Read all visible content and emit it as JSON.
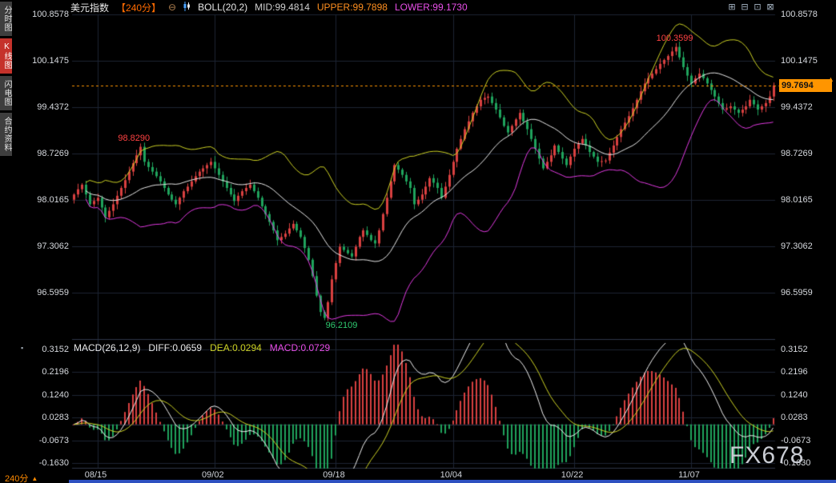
{
  "header": {
    "title": "美元指数",
    "timeframe": "【240分】",
    "zoom_icon": "⊖",
    "boll_label": "BOLL(20,2)",
    "mid": "MID:99.4814",
    "upper": "UPPER:99.7898",
    "lower": "LOWER:99.1730",
    "win_icons": [
      "⊞",
      "⊟",
      "⊡",
      "⊠"
    ]
  },
  "sidebar": {
    "items": [
      {
        "label": "分时图",
        "active": false
      },
      {
        "label": "K线图",
        "active": true
      },
      {
        "label": "闪电图",
        "active": false
      },
      {
        "label": "合约资料",
        "active": false
      }
    ]
  },
  "macd_header": {
    "icon": "▪",
    "label": "MACD(26,12,9)",
    "diff": "DIFF:0.0659",
    "dea": "DEA:0.0294",
    "macd": "MACD:0.0729"
  },
  "annotations": {
    "high": "100.3599",
    "early_high": "98.8290",
    "low": "96.2109"
  },
  "price_tag": {
    "value": "99.7694",
    "arrow": "▲"
  },
  "bottom": {
    "timeframe": "240分",
    "arrow": "▲"
  },
  "watermark": "FX678",
  "colors": {
    "up": "#d94040",
    "down": "#1fa35c",
    "boll_upper": "#cdd224",
    "boll_mid": "#e8e8e8",
    "boll_lower": "#e23ae2",
    "macd_diff": "#f0f0f0",
    "macd_dea": "#cdd224",
    "accent_orange": "#ff9500",
    "grid": "#1c2433",
    "separator": "#2e3648"
  },
  "chart_data": {
    "type": "candlestick",
    "title": "美元指数 【240分】",
    "price_ticks": [
      100.8578,
      100.1475,
      99.4372,
      98.7269,
      98.0165,
      97.3062,
      96.5959
    ],
    "macd_ticks": [
      0.3152,
      0.2196,
      0.124,
      0.0283,
      -0.0673,
      -0.163
    ],
    "x_labels": [
      {
        "label": "08/15",
        "index": 6
      },
      {
        "label": "09/02",
        "index": 36
      },
      {
        "label": "09/18",
        "index": 67
      },
      {
        "label": "10/04",
        "index": 97
      },
      {
        "label": "10/22",
        "index": 128
      },
      {
        "label": "11/07",
        "index": 158
      }
    ],
    "current_price": 99.7694,
    "indicators": {
      "boll": {
        "period": 20,
        "mult": 2
      },
      "macd": {
        "fast": 12,
        "slow": 26,
        "signal": 9
      }
    },
    "marked_points": {
      "early_high": {
        "index": 17,
        "value": 98.829
      },
      "low": {
        "index": 64,
        "value": 96.2109
      },
      "high": {
        "index": 154,
        "value": 100.3599
      }
    },
    "closes": [
      98.1,
      98.18,
      98.25,
      98.1,
      97.95,
      98.0,
      98.05,
      97.9,
      97.75,
      97.85,
      97.95,
      98.08,
      98.2,
      98.32,
      98.45,
      98.58,
      98.7,
      98.83,
      98.6,
      98.52,
      98.45,
      98.38,
      98.3,
      98.2,
      98.1,
      98.02,
      97.95,
      98.05,
      98.15,
      98.22,
      98.3,
      98.38,
      98.45,
      98.5,
      98.55,
      98.6,
      98.5,
      98.4,
      98.3,
      98.2,
      98.1,
      98.0,
      98.08,
      98.15,
      98.2,
      98.25,
      98.15,
      98.05,
      97.92,
      97.8,
      97.68,
      97.55,
      97.4,
      97.45,
      97.5,
      97.58,
      97.65,
      97.55,
      97.45,
      97.28,
      97.1,
      96.85,
      96.55,
      96.3,
      96.21,
      96.45,
      96.8,
      97.05,
      97.3,
      97.25,
      97.2,
      97.15,
      97.3,
      97.45,
      97.55,
      97.48,
      97.4,
      97.35,
      97.55,
      97.8,
      98.05,
      98.3,
      98.55,
      98.48,
      98.4,
      98.3,
      98.2,
      97.95,
      98.02,
      98.1,
      98.22,
      98.35,
      98.28,
      98.2,
      98.05,
      98.22,
      98.4,
      98.6,
      98.8,
      98.95,
      99.1,
      99.22,
      99.35,
      99.45,
      99.55,
      99.58,
      99.6,
      99.5,
      99.4,
      99.28,
      99.15,
      99.05,
      99.15,
      99.25,
      99.35,
      99.22,
      99.1,
      98.95,
      98.8,
      98.65,
      98.5,
      98.6,
      98.7,
      98.85,
      98.75,
      98.65,
      98.55,
      98.68,
      98.8,
      98.88,
      98.95,
      98.85,
      98.75,
      98.68,
      98.6,
      98.61,
      98.62,
      98.74,
      98.85,
      98.98,
      99.1,
      99.2,
      99.3,
      99.42,
      99.55,
      99.68,
      99.8,
      99.88,
      99.95,
      100.02,
      100.1,
      100.16,
      100.22,
      100.29,
      100.36,
      100.2,
      100.05,
      99.92,
      99.8,
      99.88,
      99.95,
      99.88,
      99.8,
      99.7,
      99.6,
      99.5,
      99.4,
      99.42,
      99.45,
      99.4,
      99.35,
      99.4,
      99.45,
      99.55,
      99.48,
      99.4,
      99.45,
      99.5,
      99.6,
      99.77
    ]
  }
}
